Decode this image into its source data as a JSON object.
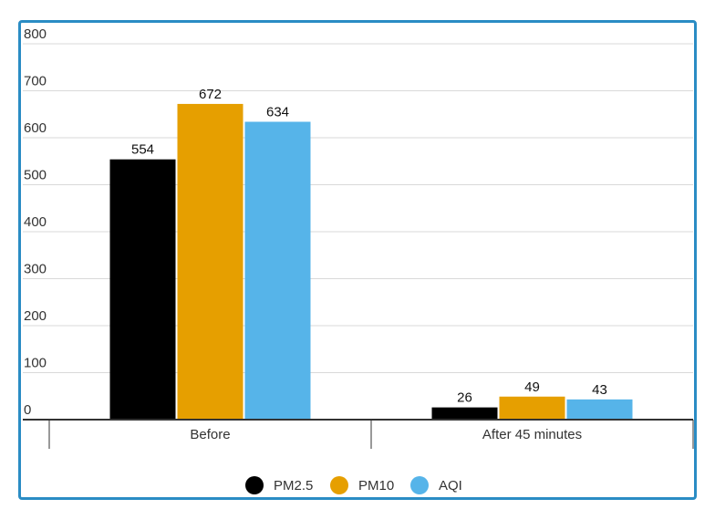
{
  "chart_data": {
    "type": "bar",
    "categories": [
      "Before",
      "After 45 minutes"
    ],
    "series": [
      {
        "name": "PM2.5",
        "values": [
          554,
          26
        ],
        "color": "#000000"
      },
      {
        "name": "PM10",
        "values": [
          672,
          49
        ],
        "color": "#e69f00"
      },
      {
        "name": "AQI",
        "values": [
          634,
          43
        ],
        "color": "#56b4e9"
      }
    ],
    "ylim": [
      0,
      800
    ],
    "yticks": [
      0,
      100,
      200,
      300,
      400,
      500,
      600,
      700,
      800
    ],
    "grid": true,
    "legend_position": "bottom",
    "data_labels": true
  },
  "colors": {
    "frame_border": "#2a8cc4",
    "grid": "#d9d9d9",
    "axis": "#333333"
  }
}
